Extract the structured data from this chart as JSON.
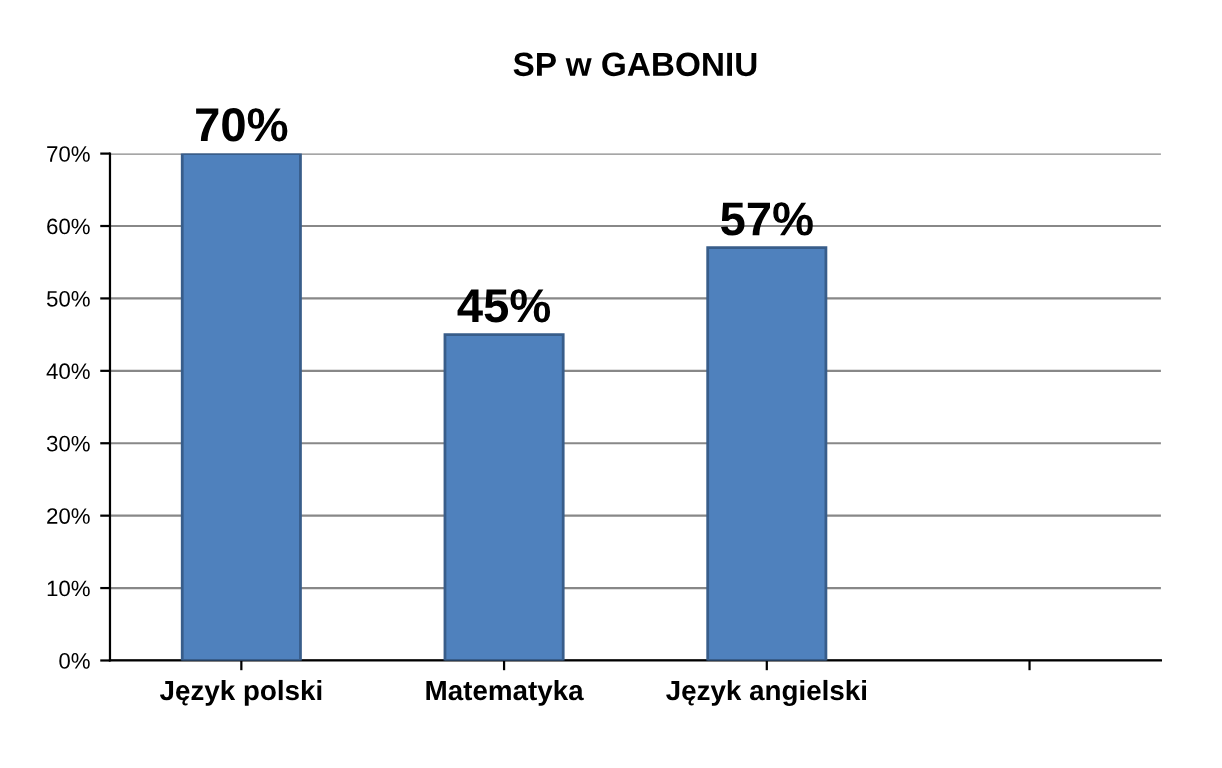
{
  "chart_data": {
    "type": "bar",
    "title": "SP w GABONIU",
    "categories": [
      "Język polski",
      "Matematyka",
      "Język angielski",
      null
    ],
    "values": [
      70,
      45,
      57,
      null
    ],
    "value_labels": [
      "70%",
      "45%",
      "57%",
      null
    ],
    "color": "#4f81bd",
    "ylim": [
      0,
      70
    ],
    "yticks": [
      {
        "value": 0,
        "label": "0%"
      },
      {
        "value": 10,
        "label": "10%"
      },
      {
        "value": 20,
        "label": "20%"
      },
      {
        "value": 30,
        "label": "30%"
      },
      {
        "value": 40,
        "label": "40%"
      },
      {
        "value": 50,
        "label": "50%"
      },
      {
        "value": 60,
        "label": "60%"
      },
      {
        "value": 70,
        "label": "70%"
      }
    ],
    "grid": "y"
  }
}
